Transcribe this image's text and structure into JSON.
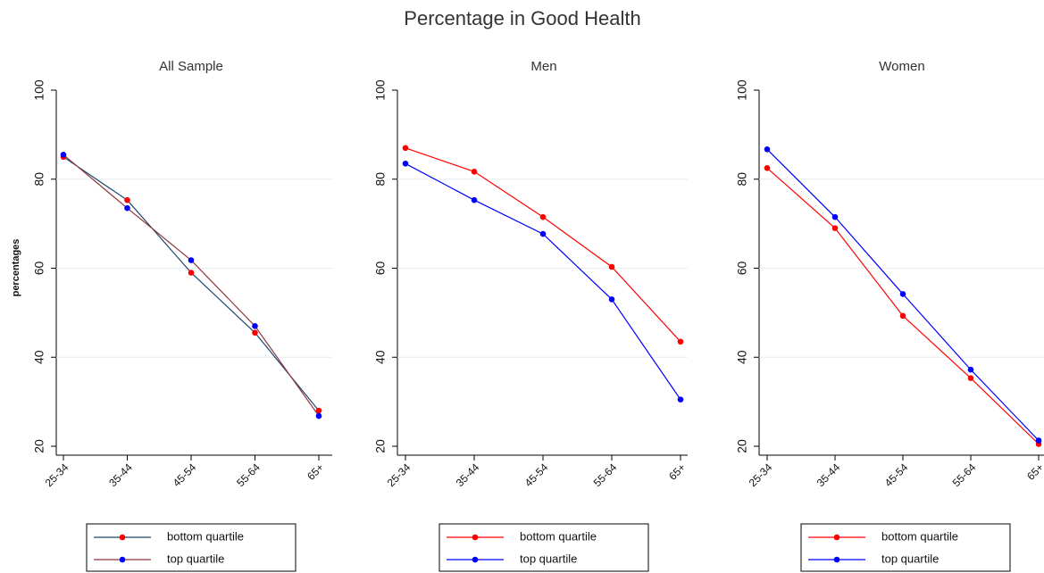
{
  "title": "Percentage in Good Health",
  "chart_data": [
    {
      "type": "line",
      "title": "All Sample",
      "ylabel": "percentages",
      "categories": [
        "25-34",
        "35-44",
        "45-54",
        "55-64",
        "65+"
      ],
      "series": [
        {
          "name": "bottom quartile",
          "color": "#1a476f",
          "marker_color": "#ff0000",
          "values": [
            85,
            75.3,
            59,
            45.5,
            28
          ]
        },
        {
          "name": "top quartile",
          "color": "#90353b",
          "marker_color": "#0000ff",
          "values": [
            85.5,
            73.5,
            61.8,
            47,
            26.8
          ]
        }
      ],
      "ylim": [
        20,
        100
      ],
      "yticks": [
        20,
        40,
        60,
        80,
        100
      ],
      "grid": true
    },
    {
      "type": "line",
      "title": "Men",
      "categories": [
        "25-34",
        "35-44",
        "45-54",
        "55-64",
        "65+"
      ],
      "series": [
        {
          "name": "bottom quartile",
          "color": "#ff0000",
          "marker_color": "#ff0000",
          "values": [
            87,
            81.7,
            71.5,
            60.3,
            43.5
          ]
        },
        {
          "name": "top quartile",
          "color": "#0000ff",
          "marker_color": "#0000ff",
          "values": [
            83.5,
            75.3,
            67.7,
            53,
            30.5
          ]
        }
      ],
      "ylim": [
        20,
        100
      ],
      "yticks": [
        20,
        40,
        60,
        80,
        100
      ],
      "grid": true
    },
    {
      "type": "line",
      "title": "Women",
      "categories": [
        "25-34",
        "35-44",
        "45-54",
        "55-64",
        "65+"
      ],
      "series": [
        {
          "name": "bottom quartile",
          "color": "#ff0000",
          "marker_color": "#ff0000",
          "values": [
            82.5,
            69,
            49.3,
            35.3,
            20.5
          ]
        },
        {
          "name": "top quartile",
          "color": "#0000ff",
          "marker_color": "#0000ff",
          "values": [
            86.7,
            71.5,
            54.2,
            37.2,
            21.3
          ]
        }
      ],
      "ylim": [
        20,
        100
      ],
      "yticks": [
        20,
        40,
        60,
        80,
        100
      ],
      "grid": true
    }
  ]
}
